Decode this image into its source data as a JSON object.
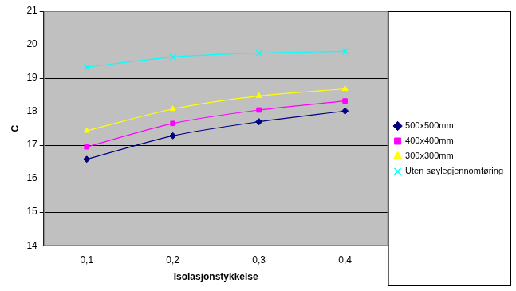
{
  "chart_data": {
    "type": "line",
    "x_label": "Isolasjonstykkelse",
    "y_label": "C",
    "categories": [
      "0,1",
      "0,2",
      "0,3",
      "0,4"
    ],
    "series": [
      {
        "name": "500x500mm",
        "color": "#000080",
        "marker": "diamond",
        "values": [
          16.58,
          17.28,
          17.7,
          18.02
        ]
      },
      {
        "name": "400x400mm",
        "color": "#ff00ff",
        "marker": "square",
        "values": [
          16.95,
          17.65,
          18.05,
          18.32
        ]
      },
      {
        "name": "300x300mm",
        "color": "#ffff00",
        "marker": "triangle",
        "values": [
          17.43,
          18.08,
          18.47,
          18.68
        ]
      },
      {
        "name": "Uten søylegjennomføring",
        "color": "#00ffff",
        "marker": "x",
        "values": [
          19.33,
          19.63,
          19.75,
          19.8
        ]
      }
    ],
    "ylim": [
      14,
      21
    ],
    "yticks": [
      14,
      15,
      16,
      17,
      18,
      19,
      20,
      21
    ],
    "grid": true,
    "legend": "right"
  }
}
